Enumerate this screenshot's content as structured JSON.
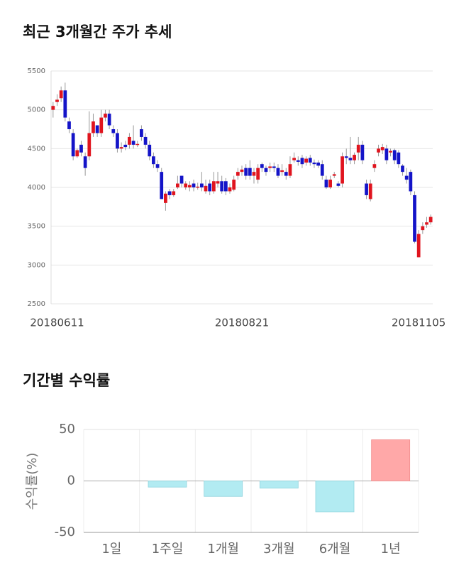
{
  "chart_data": [
    {
      "type": "candlestick",
      "title": "최근 3개월간 주가 추세",
      "categories": [
        null,
        "20180611",
        null,
        null,
        null,
        null,
        null,
        null,
        null,
        null,
        null,
        null,
        null,
        null,
        null,
        null,
        null,
        null,
        null,
        null,
        null,
        null,
        null,
        null,
        null,
        null,
        null,
        null,
        null,
        null,
        null,
        null,
        null,
        null,
        null,
        null,
        null,
        null,
        null,
        null,
        null,
        null,
        null,
        null,
        null,
        null,
        null,
        "20180821",
        null,
        null,
        null,
        null,
        null,
        null,
        null,
        null,
        null,
        null,
        null,
        null,
        null,
        null,
        null,
        null,
        null,
        null,
        null,
        null,
        null,
        null,
        null,
        null,
        null,
        null,
        null,
        null,
        null,
        null,
        null,
        null,
        null,
        null,
        null,
        null,
        null,
        null,
        null,
        null,
        null,
        null,
        null,
        "20181105",
        null,
        null,
        null
      ],
      "open": [
        5000,
        5100,
        5150,
        5250,
        4850,
        4700,
        4400,
        4550,
        4400,
        4400,
        4700,
        4800,
        4700,
        4900,
        4950,
        4750,
        4700,
        4500,
        4550,
        4550,
        4600,
        4550,
        4750,
        4650,
        4550,
        4400,
        4300,
        4200,
        3800,
        3950,
        3900,
        4000,
        4150,
        4000,
        4000,
        4050,
        4000,
        4050,
        3950,
        4050,
        3950,
        4050,
        4080,
        4080,
        3950,
        3970,
        4150,
        4200,
        4250,
        4250,
        4150,
        4100,
        4300,
        4250,
        4250,
        4270,
        4250,
        4200,
        4200,
        4150,
        4350,
        4350,
        4380,
        4320,
        4380,
        4320,
        4320,
        4300,
        4100,
        4000,
        4150,
        4050,
        4050,
        4400,
        4380,
        4350,
        4450,
        4550,
        4050,
        3850,
        4250,
        4450,
        4480,
        4500,
        4450,
        4480,
        4450,
        4280,
        4150,
        4200,
        3900,
        3100,
        3450,
        3520,
        3550
      ],
      "high": [
        5100,
        5200,
        5300,
        5350,
        4900,
        4750,
        4500,
        4600,
        4450,
        4980,
        4950,
        4800,
        5000,
        5000,
        5000,
        4800,
        4750,
        4580,
        4600,
        4700,
        4800,
        4600,
        4800,
        4700,
        4600,
        4450,
        4350,
        4250,
        3950,
        3980,
        3980,
        4150,
        4150,
        4080,
        4080,
        4100,
        4060,
        4200,
        4100,
        4100,
        4200,
        4200,
        4150,
        4120,
        4050,
        4150,
        4250,
        4280,
        4300,
        4350,
        4250,
        4300,
        4320,
        4280,
        4320,
        4320,
        4300,
        4300,
        4250,
        4400,
        4450,
        4400,
        4420,
        4400,
        4420,
        4360,
        4350,
        4350,
        4150,
        4150,
        4200,
        4080,
        4450,
        4500,
        4650,
        4450,
        4650,
        4600,
        4100,
        4100,
        4350,
        4550,
        4560,
        4550,
        4500,
        4500,
        4480,
        4300,
        4250,
        4230,
        3950,
        3450,
        3550,
        3620,
        3650
      ],
      "low": [
        4900,
        5050,
        5100,
        4850,
        4700,
        4350,
        4380,
        4400,
        4150,
        4350,
        4650,
        4650,
        4650,
        4850,
        4750,
        4650,
        4450,
        4450,
        4480,
        4500,
        4500,
        4520,
        4600,
        4500,
        4350,
        4250,
        4200,
        3850,
        3700,
        3850,
        3880,
        3980,
        4000,
        3970,
        3950,
        3950,
        3970,
        3950,
        3920,
        3900,
        3920,
        4000,
        3920,
        3900,
        3920,
        3950,
        4100,
        4150,
        4100,
        4100,
        4050,
        4050,
        4200,
        4150,
        4200,
        4200,
        4120,
        4150,
        4100,
        4120,
        4320,
        4280,
        4250,
        4280,
        4280,
        4250,
        4250,
        4100,
        3980,
        3980,
        4120,
        4000,
        4000,
        4300,
        4300,
        4300,
        4350,
        4300,
        3850,
        3820,
        4200,
        4400,
        4430,
        4300,
        4400,
        4300,
        4250,
        4150,
        4050,
        3900,
        3280,
        3100,
        3400,
        3480,
        3520
      ],
      "close": [
        5050,
        5130,
        5250,
        4900,
        4750,
        4400,
        4480,
        4450,
        4250,
        4700,
        4850,
        4700,
        4900,
        4950,
        4800,
        4700,
        4500,
        4520,
        4520,
        4650,
        4550,
        4560,
        4650,
        4550,
        4400,
        4300,
        4250,
        3850,
        3920,
        3900,
        3950,
        4050,
        4050,
        4050,
        4030,
        4000,
        4010,
        4000,
        4020,
        3950,
        4080,
        4080,
        3950,
        3950,
        4000,
        4100,
        4200,
        4230,
        4150,
        4150,
        4200,
        4250,
        4250,
        4200,
        4270,
        4250,
        4150,
        4220,
        4150,
        4300,
        4380,
        4330,
        4300,
        4370,
        4320,
        4300,
        4280,
        4150,
        4000,
        4100,
        4170,
        4020,
        4400,
        4380,
        4350,
        4420,
        4550,
        4350,
        3900,
        4050,
        4300,
        4500,
        4520,
        4350,
        4470,
        4350,
        4300,
        4200,
        4100,
        3950,
        3300,
        3400,
        3500,
        3550,
        3620
      ],
      "ylim": [
        2500,
        5500
      ],
      "yticks": [
        2500,
        3000,
        3500,
        4000,
        4500,
        5000,
        5500
      ],
      "up_color": "#e0141e",
      "down_color": "#1414c8",
      "grid": true
    },
    {
      "type": "bar",
      "title": "기간별 수익률",
      "ylabel": "수익률(%)",
      "categories": [
        "1일",
        "1주일",
        "1개월",
        "3개월",
        "6개월",
        "1년"
      ],
      "values": [
        0,
        -6,
        -15,
        -7,
        -30,
        40
      ],
      "ylim": [
        -50,
        50
      ],
      "yticks": [
        -50,
        0,
        50
      ],
      "positive_color": "#ffa8a8",
      "negative_color": "#b2ebf2",
      "grid": true
    }
  ]
}
